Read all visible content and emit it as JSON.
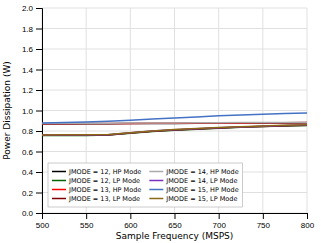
{
  "chart_data": {
    "type": "line",
    "xlabel": "Sample Frequency (MSPS)",
    "ylabel": "Power Dissipation (W)",
    "x": [
      500,
      525,
      550,
      575,
      600,
      625,
      650,
      675,
      700,
      725,
      750,
      775,
      800
    ],
    "xlim": [
      500,
      800
    ],
    "ylim": [
      0,
      2
    ],
    "xticks": [
      500,
      550,
      600,
      650,
      700,
      750,
      800
    ],
    "yticks": [
      {
        "value": 0,
        "label": "0.0"
      },
      0.2,
      0.4,
      0.6,
      0.8,
      {
        "value": 1,
        "label": "1.0"
      },
      1.2,
      1.4,
      1.6,
      1.8,
      {
        "value": 2,
        "label": "2.0"
      }
    ],
    "grid": true,
    "legend": "lower left",
    "series": [
      {
        "name": "JMODE = 12, HP Mode",
        "color": "#000000",
        "values": [
          0.868,
          0.868,
          0.87,
          0.87,
          0.872,
          0.872,
          0.874,
          0.875,
          0.876,
          0.877,
          0.878,
          0.879,
          0.88
        ]
      },
      {
        "name": "JMODE = 12, LP Mode",
        "color": "#006400",
        "values": [
          0.755,
          0.756,
          0.757,
          0.76,
          0.778,
          0.795,
          0.808,
          0.818,
          0.828,
          0.836,
          0.843,
          0.849,
          0.854
        ]
      },
      {
        "name": "JMODE = 13, HP Mode",
        "color": "#ff0000",
        "values": [
          0.87,
          0.87,
          0.872,
          0.873,
          0.874,
          0.875,
          0.876,
          0.877,
          0.878,
          0.879,
          0.88,
          0.881,
          0.882
        ]
      },
      {
        "name": "JMODE = 13, LP Mode",
        "color": "#800000",
        "values": [
          0.758,
          0.759,
          0.76,
          0.762,
          0.78,
          0.797,
          0.81,
          0.82,
          0.83,
          0.838,
          0.845,
          0.851,
          0.856
        ]
      },
      {
        "name": "JMODE = 14, HP Mode",
        "color": "#aaaaaa",
        "values": [
          0.872,
          0.873,
          0.875,
          0.876,
          0.877,
          0.878,
          0.879,
          0.88,
          0.881,
          0.882,
          0.883,
          0.884,
          0.885
        ]
      },
      {
        "name": "JMODE = 14, LP Mode",
        "color": "#7B2FBE",
        "values": [
          0.76,
          0.761,
          0.762,
          0.764,
          0.782,
          0.799,
          0.812,
          0.822,
          0.832,
          0.84,
          0.847,
          0.853,
          0.858
        ]
      },
      {
        "name": "JMODE = 15, HP Mode",
        "color": "#4472c4",
        "values": [
          0.878,
          0.882,
          0.888,
          0.896,
          0.905,
          0.916,
          0.926,
          0.937,
          0.948,
          0.957,
          0.964,
          0.97,
          0.976
        ]
      },
      {
        "name": "JMODE = 15, LP Mode",
        "color": "#8B6914",
        "values": [
          0.762,
          0.763,
          0.764,
          0.766,
          0.784,
          0.801,
          0.814,
          0.824,
          0.834,
          0.842,
          0.849,
          0.855,
          0.86
        ]
      }
    ]
  }
}
